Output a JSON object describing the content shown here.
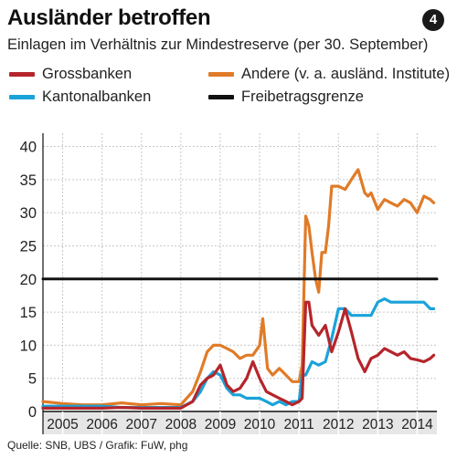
{
  "header": {
    "title": "Ausländer betroffen",
    "badge": "4",
    "subtitle": "Einlagen im Verhältnis zur Mindestreserve (per 30.  September)"
  },
  "legend": [
    {
      "label": "Grossbanken",
      "color": "#b5252b"
    },
    {
      "label": "Andere (v. a. ausländ. Institute)",
      "color": "#e07b28"
    },
    {
      "label": "Kantonalbanken",
      "color": "#1aa3d9"
    },
    {
      "label": "Freibetragsgrenze",
      "color": "#111111"
    }
  ],
  "footer": {
    "source": "Quelle: SNB, UBS / Grafik: FuW, phg"
  },
  "colors": {
    "grid": "#c8c8c8",
    "axis": "#111111",
    "year_band": "#e6e6e6"
  },
  "chart_data": {
    "type": "line",
    "title": "Ausländer betroffen",
    "subtitle": "Einlagen im Verhältnis zur Mindestreserve (per 30.  September)",
    "xlabel": "",
    "ylabel": "",
    "x_ticks": [
      "2005",
      "2006",
      "2007",
      "2008",
      "2009",
      "2010",
      "2011",
      "2012",
      "2013",
      "2014"
    ],
    "y_ticks": [
      0,
      5,
      10,
      15,
      20,
      25,
      30,
      35,
      40
    ],
    "ylim": [
      0,
      42
    ],
    "xlim": [
      2004.5,
      2014.5
    ],
    "grid": true,
    "legend_position": "top",
    "series": [
      {
        "name": "Andere (v. a. ausländ. Institute)",
        "color": "#e07b28",
        "x": [
          2004.5,
          2005.0,
          2005.5,
          2006.0,
          2006.5,
          2007.0,
          2007.5,
          2008.0,
          2008.3,
          2008.5,
          2008.67,
          2008.83,
          2009.0,
          2009.17,
          2009.33,
          2009.5,
          2009.67,
          2009.83,
          2010.0,
          2010.08,
          2010.2,
          2010.33,
          2010.5,
          2010.67,
          2010.83,
          2011.0,
          2011.08,
          2011.17,
          2011.25,
          2011.33,
          2011.42,
          2011.5,
          2011.58,
          2011.67,
          2011.75,
          2011.83,
          2012.0,
          2012.17,
          2012.33,
          2012.5,
          2012.67,
          2012.75,
          2012.83,
          2013.0,
          2013.17,
          2013.33,
          2013.5,
          2013.67,
          2013.83,
          2014.0,
          2014.17,
          2014.33,
          2014.42
        ],
        "y": [
          1.5,
          1.2,
          1.0,
          1.0,
          1.3,
          1.0,
          1.2,
          1.0,
          3.0,
          6.0,
          9.0,
          10.0,
          10.0,
          9.5,
          9.0,
          8.0,
          8.5,
          8.5,
          10.0,
          14.0,
          6.5,
          5.5,
          6.5,
          5.5,
          4.5,
          4.5,
          7.0,
          29.5,
          28.0,
          24.0,
          20.0,
          18.0,
          24.0,
          24.0,
          28.0,
          34.0,
          34.0,
          33.5,
          35.0,
          36.5,
          33.0,
          32.5,
          33.0,
          30.5,
          32.0,
          31.5,
          31.0,
          32.0,
          31.5,
          30.0,
          32.5,
          32.0,
          31.5
        ]
      },
      {
        "name": "Kantonalbanken",
        "color": "#1aa3d9",
        "x": [
          2004.5,
          2005.0,
          2005.5,
          2006.0,
          2006.5,
          2007.0,
          2007.5,
          2008.0,
          2008.3,
          2008.5,
          2008.67,
          2008.83,
          2009.0,
          2009.17,
          2009.33,
          2009.5,
          2009.67,
          2009.83,
          2010.0,
          2010.17,
          2010.33,
          2010.5,
          2010.67,
          2010.83,
          2011.0,
          2011.08,
          2011.17,
          2011.25,
          2011.33,
          2011.5,
          2011.67,
          2011.83,
          2012.0,
          2012.17,
          2012.33,
          2012.5,
          2012.67,
          2012.83,
          2013.0,
          2013.17,
          2013.33,
          2013.5,
          2013.67,
          2013.83,
          2014.0,
          2014.17,
          2014.33,
          2014.42
        ],
        "y": [
          0.8,
          0.8,
          0.8,
          0.8,
          0.6,
          0.6,
          0.6,
          0.6,
          1.5,
          3.0,
          5.0,
          6.0,
          5.5,
          3.5,
          2.5,
          2.5,
          2.0,
          2.0,
          2.0,
          1.5,
          1.0,
          1.5,
          1.0,
          1.5,
          1.5,
          5.5,
          5.5,
          6.5,
          7.5,
          7.0,
          7.5,
          11.0,
          15.5,
          15.5,
          14.5,
          14.5,
          14.5,
          14.5,
          16.5,
          17.0,
          16.5,
          16.5,
          16.5,
          16.5,
          16.5,
          16.5,
          15.5,
          15.5
        ]
      },
      {
        "name": "Grossbanken",
        "color": "#b5252b",
        "x": [
          2004.5,
          2005.0,
          2005.5,
          2006.0,
          2006.5,
          2007.0,
          2007.5,
          2008.0,
          2008.3,
          2008.5,
          2008.67,
          2008.83,
          2009.0,
          2009.17,
          2009.33,
          2009.5,
          2009.67,
          2009.83,
          2010.0,
          2010.17,
          2010.33,
          2010.5,
          2010.67,
          2010.83,
          2011.0,
          2011.08,
          2011.17,
          2011.25,
          2011.33,
          2011.5,
          2011.67,
          2011.83,
          2012.0,
          2012.17,
          2012.33,
          2012.5,
          2012.67,
          2012.83,
          2013.0,
          2013.17,
          2013.33,
          2013.5,
          2013.67,
          2013.83,
          2014.0,
          2014.17,
          2014.33,
          2014.42
        ],
        "y": [
          0.5,
          0.5,
          0.5,
          0.5,
          0.6,
          0.5,
          0.5,
          0.5,
          1.5,
          4.0,
          5.0,
          5.5,
          7.0,
          4.0,
          3.0,
          3.5,
          5.0,
          7.5,
          5.0,
          3.0,
          2.5,
          2.0,
          1.5,
          1.0,
          1.5,
          2.0,
          16.5,
          16.5,
          13.0,
          11.5,
          13.0,
          9.0,
          12.0,
          15.5,
          12.0,
          8.0,
          6.0,
          8.0,
          8.5,
          9.5,
          9.0,
          8.5,
          9.0,
          8.0,
          7.8,
          7.5,
          8.0,
          8.5
        ]
      },
      {
        "name": "Freibetragsgrenze",
        "color": "#111111",
        "x": [
          2004.5,
          2014.5
        ],
        "y": [
          20,
          20
        ]
      }
    ]
  }
}
